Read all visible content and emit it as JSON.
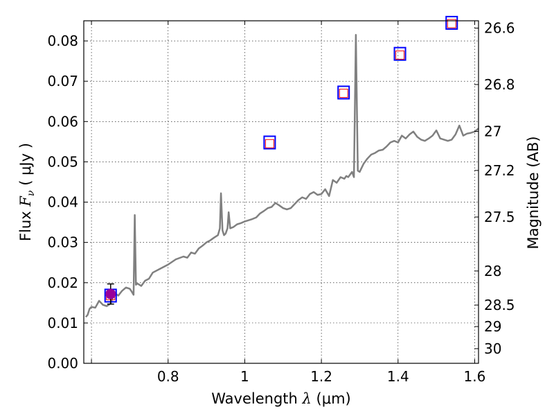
{
  "chart_data": {
    "type": "line",
    "xlabel": "Wavelength",
    "xlabel_symbol": "λ",
    "xlabel_unit": "(μm)",
    "ylabel": "Flux",
    "ylabel_symbol": "F",
    "ylabel_subscript": "ν",
    "ylabel_unit": "( μJy )",
    "y2label": "Magnitude (AB)",
    "xlim": [
      0.58,
      1.61
    ],
    "ylim": [
      0.0,
      0.085
    ],
    "grid": true,
    "x_ticks": [
      {
        "value": 0.6,
        "label": ""
      },
      {
        "value": 0.8,
        "label": "0.8"
      },
      {
        "value": 1.0,
        "label": "1"
      },
      {
        "value": 1.2,
        "label": "1.2"
      },
      {
        "value": 1.4,
        "label": "1.4"
      },
      {
        "value": 1.6,
        "label": "1.6"
      }
    ],
    "y_ticks": [
      {
        "value": 0.0,
        "label": "0.00"
      },
      {
        "value": 0.01,
        "label": "0.01"
      },
      {
        "value": 0.02,
        "label": "0.02"
      },
      {
        "value": 0.03,
        "label": "0.03"
      },
      {
        "value": 0.04,
        "label": "0.04"
      },
      {
        "value": 0.05,
        "label": "0.05"
      },
      {
        "value": 0.06,
        "label": "0.06"
      },
      {
        "value": 0.07,
        "label": "0.07"
      },
      {
        "value": 0.08,
        "label": "0.08"
      }
    ],
    "y2_ticks": [
      {
        "value": 26.6,
        "label": "26.6"
      },
      {
        "value": 26.8,
        "label": "26.8"
      },
      {
        "value": 27.0,
        "label": "27"
      },
      {
        "value": 27.2,
        "label": "27.2"
      },
      {
        "value": 27.5,
        "label": "27.5"
      },
      {
        "value": 28.0,
        "label": "28"
      },
      {
        "value": 28.5,
        "label": "28.5"
      },
      {
        "value": 29.0,
        "label": "29"
      },
      {
        "value": 30.0,
        "label": "30"
      }
    ],
    "series": [
      {
        "kind": "spectrum",
        "color": "#808080",
        "x": [
          0.585,
          0.59,
          0.595,
          0.6,
          0.61,
          0.62,
          0.63,
          0.64,
          0.65,
          0.66,
          0.67,
          0.68,
          0.69,
          0.7,
          0.705,
          0.71,
          0.713,
          0.716,
          0.72,
          0.73,
          0.74,
          0.75,
          0.76,
          0.78,
          0.8,
          0.82,
          0.84,
          0.85,
          0.86,
          0.87,
          0.88,
          0.89,
          0.9,
          0.91,
          0.92,
          0.93,
          0.935,
          0.938,
          0.942,
          0.946,
          0.95,
          0.955,
          0.958,
          0.962,
          0.97,
          0.98,
          0.99,
          1.0,
          1.01,
          1.02,
          1.03,
          1.04,
          1.05,
          1.06,
          1.07,
          1.08,
          1.09,
          1.1,
          1.11,
          1.12,
          1.13,
          1.14,
          1.15,
          1.16,
          1.17,
          1.18,
          1.19,
          1.2,
          1.21,
          1.22,
          1.23,
          1.24,
          1.25,
          1.26,
          1.265,
          1.27,
          1.28,
          1.285,
          1.29,
          1.295,
          1.3,
          1.305,
          1.31,
          1.32,
          1.33,
          1.34,
          1.35,
          1.36,
          1.37,
          1.38,
          1.39,
          1.4,
          1.41,
          1.42,
          1.43,
          1.44,
          1.45,
          1.46,
          1.47,
          1.48,
          1.49,
          1.5,
          1.51,
          1.52,
          1.53,
          1.54,
          1.55,
          1.56,
          1.57,
          1.58,
          1.59,
          1.6,
          1.61
        ],
        "values": [
          0.0115,
          0.012,
          0.0135,
          0.014,
          0.0138,
          0.0155,
          0.0145,
          0.0142,
          0.0148,
          0.0175,
          0.0168,
          0.018,
          0.0188,
          0.0185,
          0.0178,
          0.017,
          0.0368,
          0.0195,
          0.0198,
          0.0192,
          0.0205,
          0.021,
          0.0225,
          0.0235,
          0.0245,
          0.0258,
          0.0265,
          0.0262,
          0.0275,
          0.0272,
          0.0285,
          0.0292,
          0.03,
          0.0305,
          0.0312,
          0.0318,
          0.0335,
          0.0422,
          0.033,
          0.0318,
          0.0322,
          0.0335,
          0.0375,
          0.0335,
          0.0338,
          0.0345,
          0.0348,
          0.0352,
          0.0355,
          0.0358,
          0.0362,
          0.0372,
          0.0378,
          0.0385,
          0.0388,
          0.0398,
          0.0392,
          0.0385,
          0.0382,
          0.0385,
          0.0395,
          0.0405,
          0.0412,
          0.0408,
          0.042,
          0.0425,
          0.0418,
          0.042,
          0.0432,
          0.0415,
          0.0455,
          0.0448,
          0.0462,
          0.0458,
          0.0465,
          0.0462,
          0.0475,
          0.0462,
          0.0815,
          0.0478,
          0.0475,
          0.0485,
          0.0495,
          0.0508,
          0.0518,
          0.0522,
          0.0528,
          0.053,
          0.0538,
          0.0548,
          0.0552,
          0.0548,
          0.0565,
          0.0558,
          0.0568,
          0.0575,
          0.0562,
          0.0555,
          0.0552,
          0.0558,
          0.0565,
          0.0578,
          0.0558,
          0.0555,
          0.0552,
          0.0555,
          0.0568,
          0.059,
          0.0565,
          0.057,
          0.0572,
          0.0575,
          0.0583
        ],
        "stroke_width": 2.5
      },
      {
        "kind": "points",
        "marker": "square",
        "edgecolor": "#0000ff",
        "points": [
          {
            "x": 0.65,
            "y": 0.0168
          },
          {
            "x": 1.065,
            "y": 0.0548
          },
          {
            "x": 1.258,
            "y": 0.0672
          },
          {
            "x": 1.405,
            "y": 0.0768
          },
          {
            "x": 1.54,
            "y": 0.0845
          }
        ]
      },
      {
        "kind": "points",
        "marker": "square",
        "edgecolor": "#ff0000",
        "points": [
          {
            "x": 0.65,
            "y": 0.0168
          },
          {
            "x": 1.065,
            "y": 0.0545
          },
          {
            "x": 1.258,
            "y": 0.067
          },
          {
            "x": 1.405,
            "y": 0.0765
          },
          {
            "x": 1.54,
            "y": 0.0843
          }
        ]
      },
      {
        "kind": "observed",
        "marker": "circle",
        "facecolor": "#990099",
        "points": [
          {
            "x": 0.65,
            "y": 0.0172,
            "yerr": 0.0025
          }
        ]
      }
    ]
  }
}
